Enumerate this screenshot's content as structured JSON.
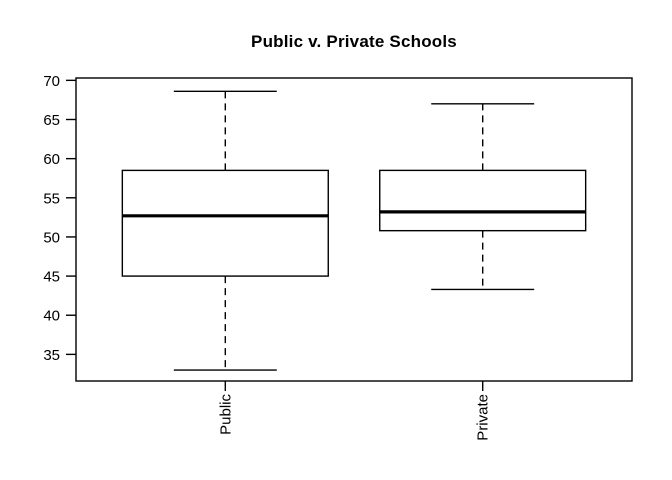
{
  "chart_data": {
    "type": "boxplot",
    "title": "Public v. Private Schools",
    "categories": [
      "Public",
      "Private"
    ],
    "series": [
      {
        "name": "Public",
        "whisker_low": 33.0,
        "q1": 45.0,
        "median": 52.7,
        "q3": 58.5,
        "whisker_high": 68.6
      },
      {
        "name": "Private",
        "whisker_low": 43.3,
        "q1": 50.8,
        "median": 53.2,
        "q3": 58.5,
        "whisker_high": 67.0
      }
    ],
    "xlabel": "",
    "ylabel": "",
    "ylim": [
      31.6,
      70.3
    ],
    "yticks": [
      35,
      40,
      45,
      50,
      55,
      60,
      65,
      70
    ],
    "grid": false,
    "legend": "none",
    "x_tick_label_rotation": 90,
    "line_color": "#000000",
    "box_fill": "#ffffff",
    "background": "#ffffff"
  }
}
